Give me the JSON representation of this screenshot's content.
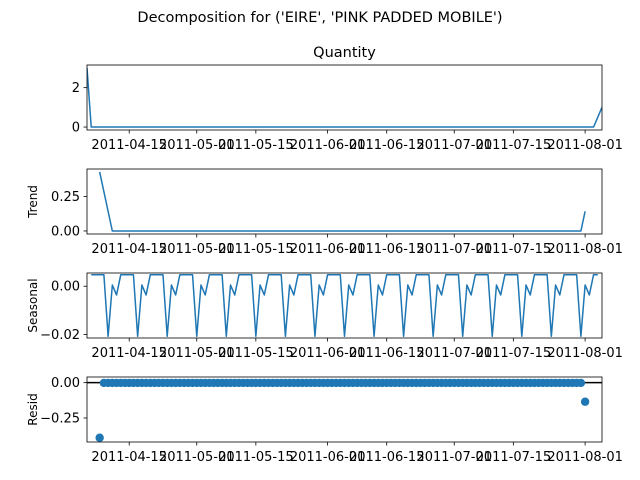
{
  "suptitle": "Decomposition for ('EIRE', 'PINK PADDED MOBILE')",
  "chart_data": {
    "type": "line",
    "x_start": "2011-04-06",
    "x_end": "2011-08-04",
    "xlim": [
      "2011-04-05",
      "2011-08-05"
    ],
    "xtick_labels": [
      "2011-04-15",
      "2011-05-01",
      "2011-05-15",
      "2011-06-01",
      "2011-06-15",
      "2011-07-01",
      "2011-07-15",
      "2011-08-01"
    ],
    "xtick_dates": [
      "2011-04-15",
      "2011-05-01",
      "2011-05-15",
      "2011-06-01",
      "2011-06-15",
      "2011-07-01",
      "2011-07-15",
      "2011-08-01"
    ],
    "panels": [
      {
        "name": "observed",
        "title": "Quantity",
        "ylabel": "",
        "kind": "line",
        "ylim": [
          -0.15,
          3.15
        ],
        "yticks": [
          0,
          2
        ],
        "ytick_labels": [
          "0",
          "2"
        ],
        "points": [
          [
            "2011-04-05",
            3
          ],
          [
            "2011-04-06",
            0
          ],
          [
            "2011-08-03",
            0
          ],
          [
            "2011-08-05",
            1
          ]
        ]
      },
      {
        "name": "trend",
        "title": "",
        "ylabel": "Trend",
        "kind": "line",
        "ylim": [
          -0.022,
          0.45
        ],
        "yticks": [
          0,
          0.25
        ],
        "ytick_labels": [
          "0.00",
          "0.25"
        ],
        "points": [
          [
            "2011-04-08",
            0.4286
          ],
          [
            "2011-04-11",
            0
          ],
          [
            "2011-07-31",
            0
          ],
          [
            "2011-08-01",
            0.1429
          ]
        ]
      },
      {
        "name": "seasonal",
        "title": "",
        "ylabel": "Seasonal",
        "kind": "line",
        "ylim": [
          -0.0215,
          0.0055
        ],
        "yticks": [
          0,
          -0.02
        ],
        "ytick_labels": [
          "0.00",
          "−0.02"
        ],
        "period": 7,
        "pattern": [
          0.0048,
          0.0048,
          0.0048,
          0.0048,
          -0.0208,
          0.0005,
          -0.0036
        ],
        "pattern_start": "2011-04-06"
      },
      {
        "name": "resid",
        "title": "",
        "ylabel": "Resid",
        "kind": "scatter",
        "ylim": [
          -0.42,
          0.04
        ],
        "yticks": [
          0,
          -0.25
        ],
        "ytick_labels": [
          "0.00",
          "−0.25"
        ],
        "zero_line": true,
        "outliers": [
          [
            "2011-04-08",
            -0.39
          ],
          [
            "2011-08-01",
            -0.135
          ]
        ],
        "range": [
          "2011-04-09",
          "2011-07-31"
        ],
        "base_value": -0.002
      }
    ]
  }
}
